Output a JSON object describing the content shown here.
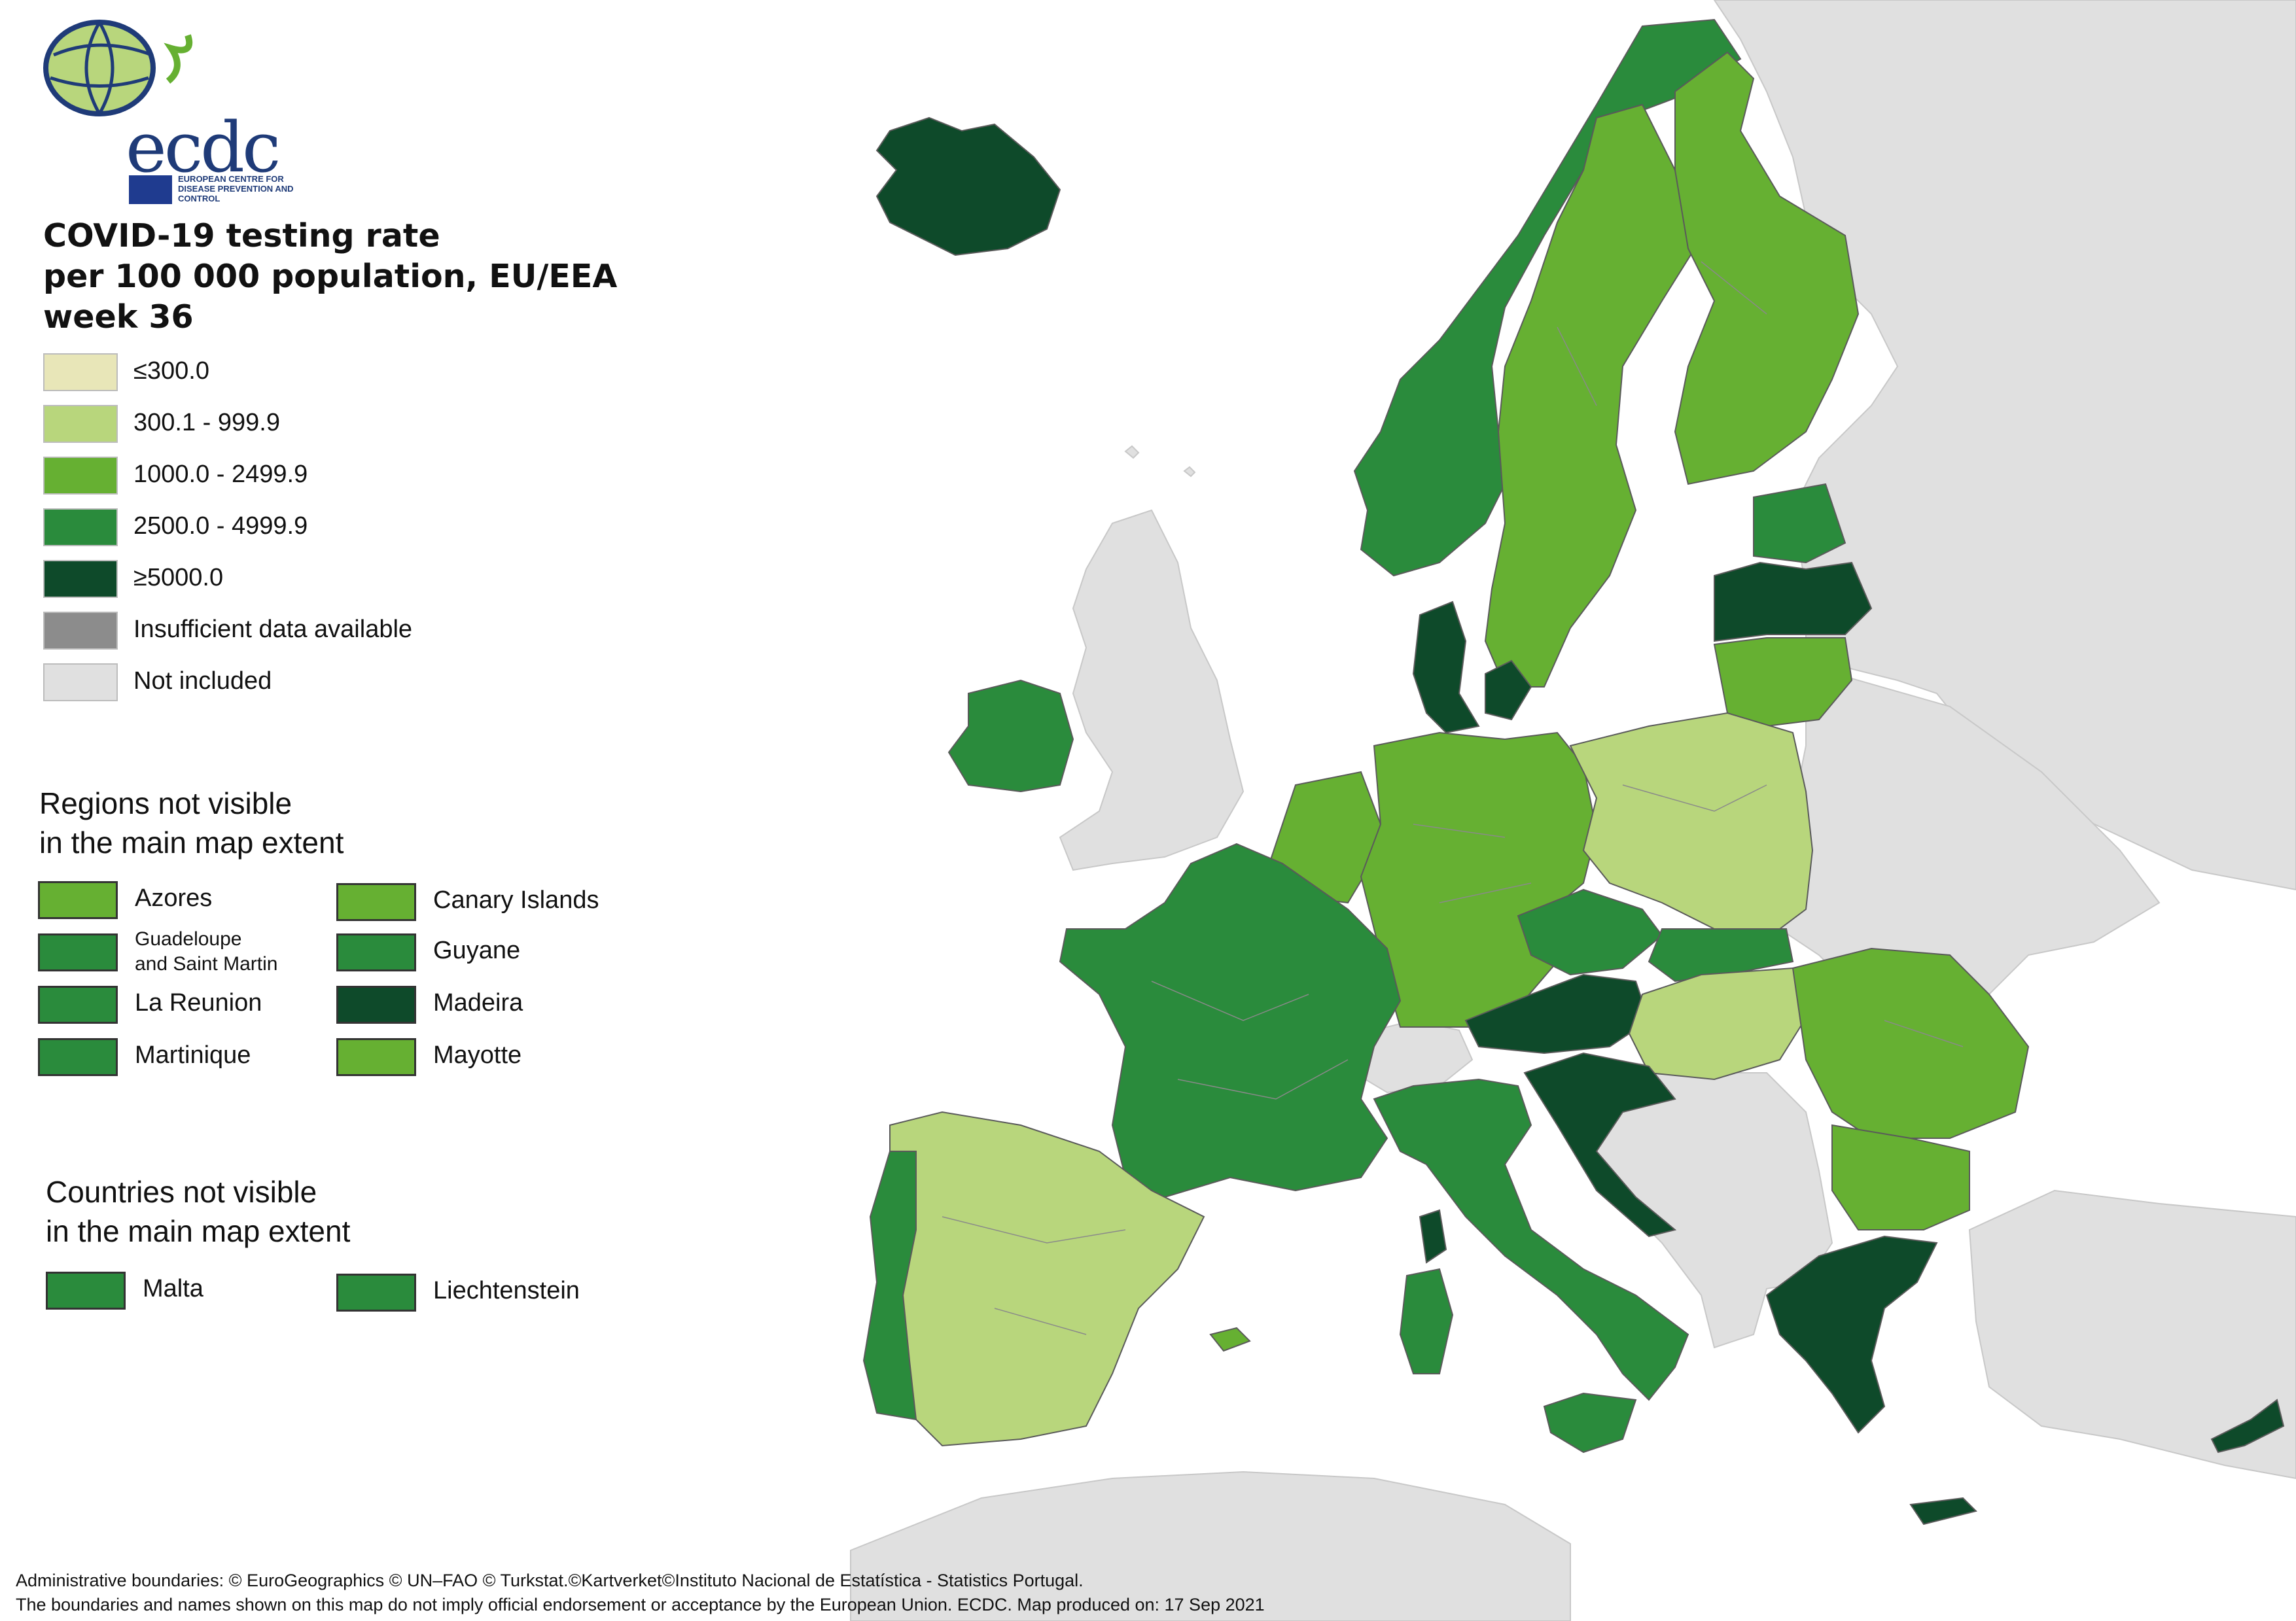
{
  "logo": {
    "wordmark": "ecdc",
    "subtitle": "EUROPEAN CENTRE FOR DISEASE PREVENTION AND CONTROL"
  },
  "title": {
    "line1": "COVID-19 testing rate",
    "line2": "per 100 000 population, EU/EEA",
    "line3": "week 36"
  },
  "colors": {
    "class1": "#e8e6b8",
    "class2": "#b8d67c",
    "class3": "#66b032",
    "class4": "#2a8b3c",
    "class5": "#0e4a2a",
    "insufficient": "#8c8c8c",
    "not_included": "#e0e0e0",
    "sea": "#ffffff",
    "borders": "#6b6b6b"
  },
  "legend": [
    {
      "label": "≤300.0",
      "color": "#e8e6b8"
    },
    {
      "label": "300.1 - 999.9",
      "color": "#b8d67c"
    },
    {
      "label": "1000.0 - 2499.9",
      "color": "#66b032"
    },
    {
      "label": "2500.0 - 4999.9",
      "color": "#2a8b3c"
    },
    {
      "label": "≥5000.0",
      "color": "#0e4a2a"
    },
    {
      "label": "Insufficient data available",
      "color": "#8c8c8c"
    },
    {
      "label": "Not included",
      "color": "#e0e0e0"
    }
  ],
  "regions_section": {
    "title_line1": "Regions not visible",
    "title_line2": "in the main map extent",
    "items": [
      {
        "label": "Azores",
        "color": "#66b032"
      },
      {
        "label": "Canary Islands",
        "color": "#66b032"
      },
      {
        "label": "Guadeloupe and Saint Martin",
        "line1": "Guadeloupe",
        "line2": "and Saint Martin",
        "color": "#2a8b3c"
      },
      {
        "label": "Guyane",
        "color": "#2a8b3c"
      },
      {
        "label": "La Reunion",
        "color": "#2a8b3c"
      },
      {
        "label": "Madeira",
        "color": "#0e4a2a"
      },
      {
        "label": "Martinique",
        "color": "#2a8b3c"
      },
      {
        "label": "Mayotte",
        "color": "#66b032"
      }
    ]
  },
  "countries_section": {
    "title_line1": "Countries not visible",
    "title_line2": "in the main map extent",
    "items": [
      {
        "label": "Malta",
        "color": "#2a8b3c"
      },
      {
        "label": "Liechtenstein",
        "color": "#2a8b3c"
      }
    ]
  },
  "footer": {
    "line1": "Administrative boundaries: © EuroGeographics © UN–FAO © Turkstat.©Kartverket©Instituto Nacional de Estatística - Statistics Portugal.",
    "line2": "The boundaries and names shown on this map do not imply official endorsement or acceptance by the European Union. ECDC. Map produced on: 17 Sep 2021"
  },
  "map_layers": [
    {
      "name": "non-eu-land",
      "color": "#e0e0e0"
    },
    {
      "name": "iceland",
      "color": "#0e4a2a"
    },
    {
      "name": "norway",
      "color": "#2a8b3c"
    },
    {
      "name": "sweden",
      "color": "#66b032"
    },
    {
      "name": "finland",
      "color": "#66b032"
    },
    {
      "name": "estonia",
      "color": "#2a8b3c"
    },
    {
      "name": "latvia",
      "color": "#0e4a2a"
    },
    {
      "name": "lithuania",
      "color": "#66b032"
    },
    {
      "name": "denmark",
      "color": "#0e4a2a"
    },
    {
      "name": "ireland",
      "color": "#2a8b3c"
    },
    {
      "name": "netherlands-belgium",
      "color": "#66b032"
    },
    {
      "name": "germany",
      "color": "#66b032"
    },
    {
      "name": "poland",
      "color": "#b8d67c"
    },
    {
      "name": "czechia",
      "color": "#2a8b3c"
    },
    {
      "name": "slovakia",
      "color": "#2a8b3c"
    },
    {
      "name": "austria",
      "color": "#0e4a2a"
    },
    {
      "name": "hungary",
      "color": "#b8d67c"
    },
    {
      "name": "romania",
      "color": "#66b032"
    },
    {
      "name": "bulgaria",
      "color": "#66b032"
    },
    {
      "name": "greece",
      "color": "#0e4a2a"
    },
    {
      "name": "france",
      "color": "#2a8b3c"
    },
    {
      "name": "spain",
      "color": "#b8d67c"
    },
    {
      "name": "portugal",
      "color": "#2a8b3c"
    },
    {
      "name": "italy",
      "color": "#2a8b3c"
    },
    {
      "name": "slovenia-croatia",
      "color": "#0e4a2a"
    },
    {
      "name": "cyprus",
      "color": "#0e4a2a"
    }
  ]
}
